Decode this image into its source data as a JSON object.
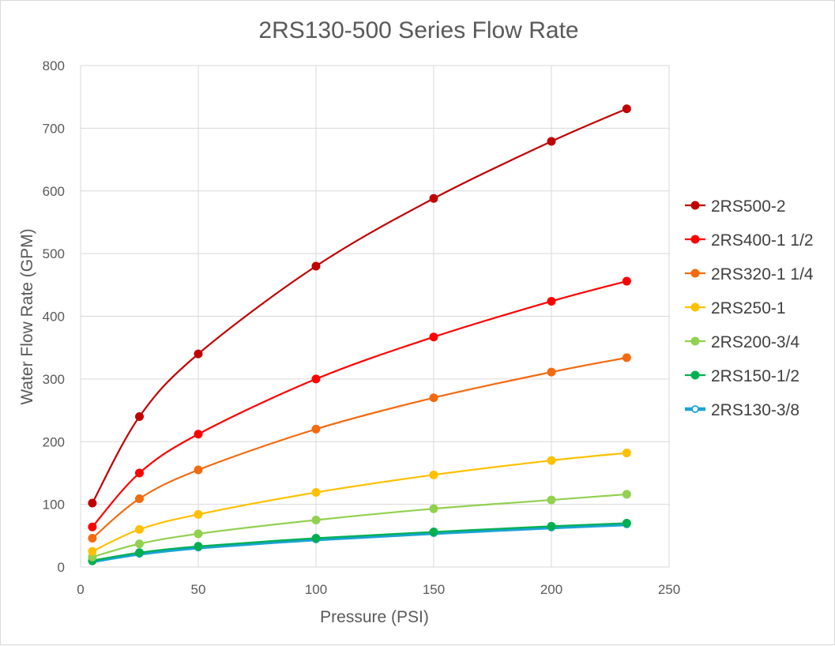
{
  "chart_data": {
    "type": "line",
    "title": "2RS130-500 Series Flow Rate",
    "xlabel": "Pressure (PSI)",
    "ylabel": "Water Flow Rate (GPM)",
    "xlim": [
      0,
      250
    ],
    "ylim": [
      0,
      800
    ],
    "xticks": [
      0,
      50,
      100,
      150,
      200,
      250
    ],
    "yticks": [
      0,
      100,
      200,
      300,
      400,
      500,
      600,
      700,
      800
    ],
    "x": [
      5,
      25,
      50,
      100,
      150,
      200,
      232
    ],
    "grid": true,
    "legend_position": "right",
    "series": [
      {
        "name": "2RS500-2",
        "color": "#c00000",
        "marker": "filled",
        "values": [
          102,
          240,
          340,
          480,
          588,
          679,
          731
        ]
      },
      {
        "name": "2RS400-1 1/2",
        "color": "#ff0000",
        "marker": "filled",
        "values": [
          64,
          150,
          212,
          300,
          367,
          424,
          456
        ]
      },
      {
        "name": "2RS320-1 1/4",
        "color": "#f46a10",
        "marker": "filled",
        "values": [
          46,
          109,
          155,
          220,
          270,
          311,
          334
        ]
      },
      {
        "name": "2RS250-1",
        "color": "#ffc000",
        "marker": "filled",
        "values": [
          25,
          60,
          84,
          119,
          147,
          170,
          182
        ]
      },
      {
        "name": "2RS200-3/4",
        "color": "#92d050",
        "marker": "filled",
        "values": [
          16,
          37,
          53,
          75,
          93,
          107,
          116
        ]
      },
      {
        "name": "2RS150-1/2",
        "color": "#00b050",
        "marker": "filled",
        "values": [
          10,
          23,
          33,
          46,
          56,
          65,
          70
        ]
      },
      {
        "name": "2RS130-3/8",
        "color": "#1aa3d4",
        "marker": "hollow",
        "values": [
          9,
          21,
          31,
          44,
          54,
          63,
          68
        ]
      }
    ]
  }
}
